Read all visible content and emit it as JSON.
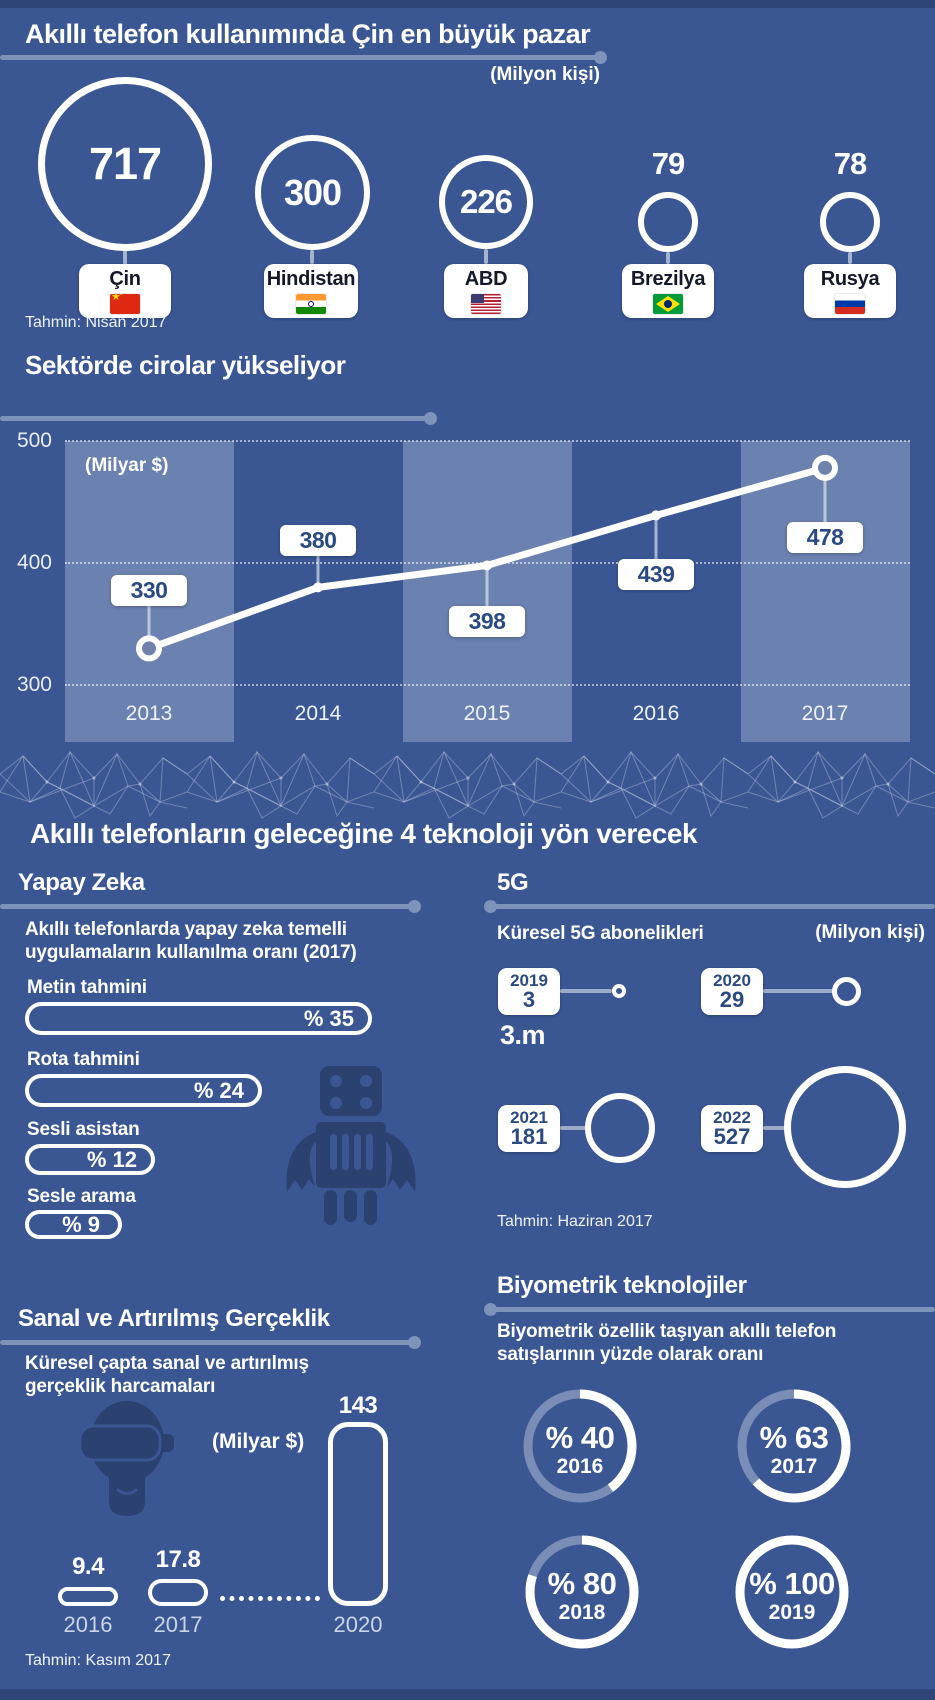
{
  "top": {
    "title": "Akıllı telefon kullanımında Çin en büyük pazar",
    "unit": "(Milyon kişi)",
    "footnote": "Tahmin: Nisan 2017"
  },
  "revenue": {
    "title": "Sektörde cirolar yükseliyor",
    "unit": "(Milyar $)"
  },
  "future": {
    "title": "Akıllı telefonların geleceğine 4 teknoloji yön verecek"
  },
  "ai": {
    "heading": "Yapay Zeka",
    "subtitle": "Akıllı telefonlarda yapay zeka temelli uygulamaların kullanılma oranı (2017)"
  },
  "g5": {
    "heading": "5G",
    "subtitle": "Küresel 5G abonelikleri",
    "unit": "(Milyon kişi)",
    "first_note": "3.m",
    "footnote": "Tahmin: Haziran 2017"
  },
  "vr": {
    "heading": "Sanal ve Artırılmış Gerçeklik",
    "subtitle": "Küresel çapta sanal ve artırılmış gerçeklik harcamaları",
    "unit": "(Milyar $)",
    "footnote": "Tahmin: Kasım 2017"
  },
  "bio": {
    "heading": "Biyometrik teknolojiler",
    "subtitle": "Biyometrik özellik taşıyan akıllı telefon satışlarının yüzde olarak oranı"
  },
  "chart_data": [
    {
      "id": "smartphone-users-by-country",
      "type": "bubble",
      "title": "Akıllı telefon kullanımında Çin en büyük pazar",
      "unit": "Milyon kişi",
      "categories": [
        "Çin",
        "Hindistan",
        "ABD",
        "Brezilya",
        "Rusya"
      ],
      "values": [
        717,
        300,
        226,
        79,
        78
      ],
      "flags": [
        "china",
        "india",
        "usa",
        "brazil",
        "russia"
      ],
      "footnote": "Tahmin: Nisan 2017"
    },
    {
      "id": "sector-revenues",
      "type": "line",
      "title": "Sektörde cirolar yükseliyor",
      "unit": "Milyar $",
      "x": [
        2013,
        2014,
        2015,
        2016,
        2017
      ],
      "values": [
        330,
        380,
        398,
        439,
        478
      ],
      "ylim": [
        300,
        500
      ],
      "yticks": [
        500,
        400,
        300
      ],
      "grid": true
    },
    {
      "id": "ai-app-usage-2017",
      "type": "bar",
      "title": "Akıllı telefonlarda yapay zeka temelli uygulamaların kullanılma oranı (2017)",
      "categories": [
        "Metin tahmini",
        "Rota tahmini",
        "Sesli asistan",
        "Sesle arama"
      ],
      "values": [
        35,
        24,
        12,
        9
      ],
      "display_values": [
        "% 35",
        "% 24",
        "% 12",
        "% 9"
      ],
      "unit": "%"
    },
    {
      "id": "global-5g-subscriptions",
      "type": "bubble",
      "title": "Küresel 5G abonelikleri",
      "unit": "Milyon kişi",
      "categories": [
        "2019",
        "2020",
        "2021",
        "2022"
      ],
      "values": [
        3,
        29,
        181,
        527
      ],
      "footnote": "Tahmin: Haziran 2017"
    },
    {
      "id": "vr-ar-spending",
      "type": "bar",
      "title": "Küresel çapta sanal ve artırılmış gerçeklik harcamaları",
      "unit": "Milyar $",
      "categories": [
        "2016",
        "2017",
        "2020"
      ],
      "values": [
        9.4,
        17.8,
        143
      ],
      "footnote": "Tahmin: Kasım 2017"
    },
    {
      "id": "biometric-smartphone-share",
      "type": "donut",
      "title": "Biyometrik özellik taşıyan akıllı telefon satışlarının yüzde olarak oranı",
      "categories": [
        "2016",
        "2017",
        "2018",
        "2019"
      ],
      "values": [
        40,
        63,
        80,
        100
      ],
      "display_values": [
        "% 40",
        "% 63",
        "% 80",
        "% 100"
      ],
      "unit": "%"
    }
  ]
}
